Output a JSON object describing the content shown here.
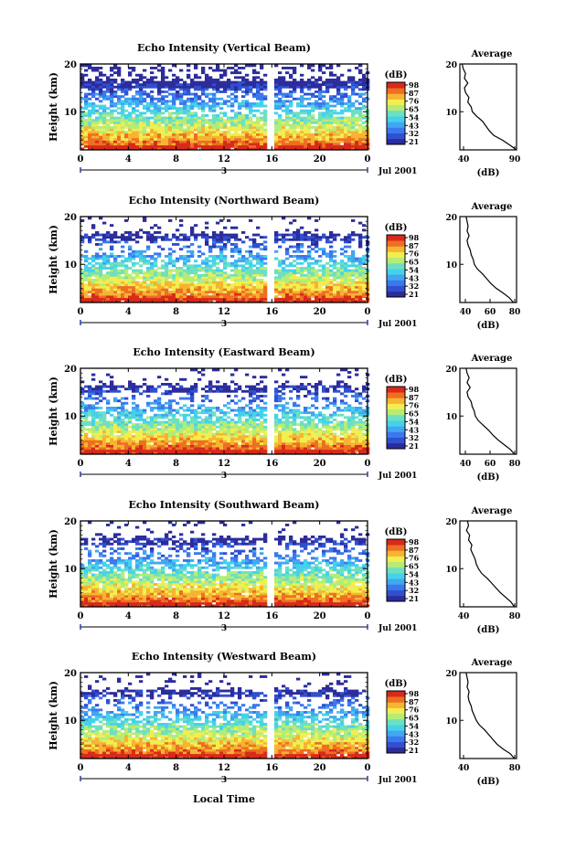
{
  "figure": {
    "date_label": "Jul 2001",
    "xlabel": "Local Time",
    "day_label": "3",
    "colorbar_unit": "(dB)",
    "colors": [
      "#2c2c9c",
      "#3050d0",
      "#3a78ee",
      "#42a6f0",
      "#44d2ea",
      "#6ee0c0",
      "#b4ec78",
      "#f2ee50",
      "#f6b432",
      "#ee6e22",
      "#d82a1a"
    ]
  },
  "chart_data": [
    {
      "type": "heatmap",
      "title": "Echo Intensity (Vertical Beam)",
      "xlabel": "Local Time",
      "ylabel": "Height (km)",
      "xlim": [
        0,
        24
      ],
      "ylim": [
        2,
        20
      ],
      "xticks": [
        "0",
        "4",
        "8",
        "12",
        "16",
        "20",
        "0"
      ],
      "yticks": [
        "10",
        "20"
      ],
      "data_gap_hours": [
        15.4,
        16.1
      ],
      "colorbar": {
        "unit": "(dB)",
        "ticks": [
          "98",
          "87",
          "76",
          "65",
          "54",
          "43",
          "32",
          "21"
        ]
      },
      "profile": {
        "title": "Average",
        "xlabel": "(dB)",
        "xticks": [
          "40",
          "90"
        ],
        "xlim": [
          40,
          90
        ],
        "heights_km": [
          20,
          19,
          18,
          17,
          16,
          15,
          14,
          13,
          12,
          11,
          10,
          9,
          8,
          7,
          6,
          5,
          4,
          3,
          2
        ],
        "values_db": [
          42,
          43,
          45,
          44,
          47,
          44,
          45,
          48,
          47,
          50,
          51,
          55,
          60,
          63,
          66,
          70,
          78,
          84,
          90
        ]
      }
    },
    {
      "type": "heatmap",
      "title": "Echo Intensity (Northward Beam)",
      "xlabel": "Local Time",
      "ylabel": "Height (km)",
      "xlim": [
        0,
        24
      ],
      "ylim": [
        2,
        20
      ],
      "xticks": [
        "0",
        "4",
        "8",
        "12",
        "16",
        "20",
        "0"
      ],
      "yticks": [
        "10",
        "20"
      ],
      "data_gap_hours": [
        15.4,
        16.1
      ],
      "colorbar": {
        "unit": "(dB)",
        "ticks": [
          "98",
          "87",
          "76",
          "65",
          "54",
          "43",
          "32",
          "21"
        ]
      },
      "profile": {
        "title": "Average",
        "xlabel": "(dB)",
        "xticks": [
          "40",
          "60",
          "80"
        ],
        "xlim": [
          30,
          85
        ],
        "heights_km": [
          20,
          19,
          18,
          17,
          16,
          15,
          14,
          13,
          12,
          11,
          10,
          9,
          8,
          7,
          6,
          5,
          4,
          3,
          2
        ],
        "values_db": [
          36,
          37,
          38,
          37,
          39,
          37,
          38,
          40,
          41,
          43,
          44,
          47,
          52,
          56,
          60,
          65,
          72,
          78,
          82
        ]
      }
    },
    {
      "type": "heatmap",
      "title": "Echo Intensity (Eastward Beam)",
      "xlabel": "Local Time",
      "ylabel": "Height (km)",
      "xlim": [
        0,
        24
      ],
      "ylim": [
        2,
        20
      ],
      "xticks": [
        "0",
        "4",
        "8",
        "12",
        "16",
        "20",
        "0"
      ],
      "yticks": [
        "10",
        "20"
      ],
      "data_gap_hours": [
        15.4,
        16.1
      ],
      "colorbar": {
        "unit": "(dB)",
        "ticks": [
          "98",
          "87",
          "76",
          "65",
          "54",
          "43",
          "32",
          "21"
        ]
      },
      "profile": {
        "title": "Average",
        "xlabel": "(dB)",
        "xticks": [
          "40",
          "60",
          "80"
        ],
        "xlim": [
          30,
          85
        ],
        "heights_km": [
          20,
          19,
          18,
          17,
          16,
          15,
          14,
          13,
          12,
          11,
          10,
          9,
          8,
          7,
          6,
          5,
          4,
          3,
          2
        ],
        "values_db": [
          36,
          37,
          39,
          37,
          40,
          37,
          38,
          41,
          42,
          44,
          45,
          48,
          53,
          58,
          62,
          67,
          73,
          79,
          83
        ]
      }
    },
    {
      "type": "heatmap",
      "title": "Echo Intensity (Southward Beam)",
      "xlabel": "Local Time",
      "ylabel": "Height (km)",
      "xlim": [
        0,
        24
      ],
      "ylim": [
        2,
        20
      ],
      "xticks": [
        "0",
        "4",
        "8",
        "12",
        "16",
        "20",
        "0"
      ],
      "yticks": [
        "10",
        "20"
      ],
      "data_gap_hours": [
        15.4,
        16.1
      ],
      "colorbar": {
        "unit": "(dB)",
        "ticks": [
          "98",
          "87",
          "76",
          "65",
          "54",
          "43",
          "32",
          "21"
        ]
      },
      "profile": {
        "title": "Average",
        "xlabel": "(dB)",
        "xticks": [
          "40",
          "80"
        ],
        "xlim": [
          30,
          82
        ],
        "heights_km": [
          20,
          19,
          18,
          17,
          16,
          15,
          14,
          13,
          12,
          11,
          10,
          9,
          8,
          7,
          6,
          5,
          4,
          3,
          2
        ],
        "values_db": [
          37,
          38,
          36,
          39,
          38,
          41,
          40,
          42,
          44,
          45,
          47,
          50,
          55,
          59,
          63,
          67,
          72,
          77,
          80
        ]
      }
    },
    {
      "type": "heatmap",
      "title": "Echo Intensity (Westward Beam)",
      "xlabel": "Local Time",
      "ylabel": "Height (km)",
      "xlim": [
        0,
        24
      ],
      "ylim": [
        2,
        20
      ],
      "xticks": [
        "0",
        "4",
        "8",
        "12",
        "16",
        "20",
        "0"
      ],
      "yticks": [
        "10",
        "20"
      ],
      "data_gap_hours": [
        15.4,
        16.1
      ],
      "colorbar": {
        "unit": "(dB)",
        "ticks": [
          "98",
          "87",
          "76",
          "65",
          "54",
          "43",
          "32",
          "21"
        ]
      },
      "profile": {
        "title": "Average",
        "xlabel": "(dB)",
        "xticks": [
          "40",
          "80"
        ],
        "xlim": [
          30,
          85
        ],
        "heights_km": [
          20,
          19,
          18,
          17,
          16,
          15,
          14,
          13,
          12,
          11,
          10,
          9,
          8,
          7,
          6,
          5,
          4,
          3,
          2
        ],
        "values_db": [
          36,
          37,
          38,
          37,
          39,
          38,
          39,
          41,
          42,
          44,
          46,
          49,
          54,
          58,
          62,
          66,
          72,
          79,
          83
        ]
      }
    }
  ]
}
